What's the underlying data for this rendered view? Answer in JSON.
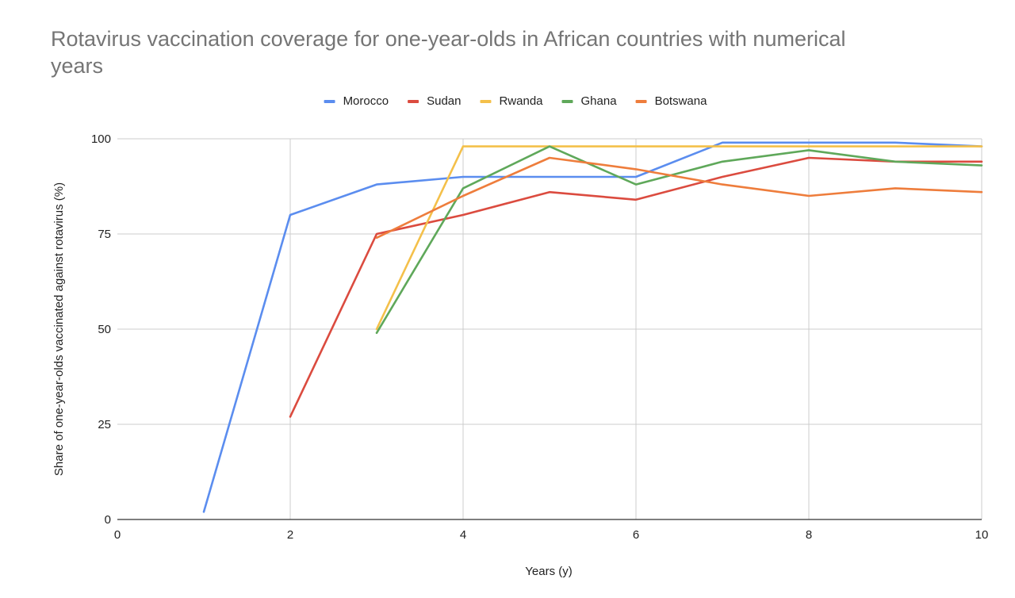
{
  "chart_data": {
    "type": "line",
    "title_lines": [
      "Rotavirus vaccination coverage for one-year-olds in African countries with numerical",
      "years"
    ],
    "xlabel": "Years (y)",
    "ylabel": "Share of one-year-olds vaccinated against rotavirus (%)",
    "xlim": [
      0,
      10
    ],
    "ylim": [
      0,
      100
    ],
    "xticks": [
      0,
      2,
      4,
      6,
      8,
      10
    ],
    "yticks": [
      0,
      25,
      50,
      75,
      100
    ],
    "grid": true,
    "legend_position": "top",
    "series": [
      {
        "name": "Morocco",
        "color": "#5b8def",
        "points": [
          [
            1,
            2
          ],
          [
            2,
            80
          ],
          [
            3,
            88
          ],
          [
            4,
            90
          ],
          [
            5,
            90
          ],
          [
            6,
            90
          ],
          [
            7,
            99
          ],
          [
            8,
            99
          ],
          [
            9,
            99
          ],
          [
            10,
            98
          ]
        ]
      },
      {
        "name": "Sudan",
        "color": "#db4b3f",
        "points": [
          [
            2,
            27
          ],
          [
            3,
            75
          ],
          [
            4,
            80
          ],
          [
            5,
            86
          ],
          [
            6,
            84
          ],
          [
            7,
            90
          ],
          [
            8,
            95
          ],
          [
            9,
            94
          ],
          [
            10,
            94
          ]
        ]
      },
      {
        "name": "Rwanda",
        "color": "#f4c04a",
        "points": [
          [
            3,
            50
          ],
          [
            4,
            98
          ],
          [
            5,
            98
          ],
          [
            6,
            98
          ],
          [
            7,
            98
          ],
          [
            8,
            98
          ],
          [
            9,
            98
          ],
          [
            10,
            98
          ]
        ]
      },
      {
        "name": "Ghana",
        "color": "#5fa85a",
        "points": [
          [
            3,
            49
          ],
          [
            4,
            87
          ],
          [
            5,
            98
          ],
          [
            6,
            88
          ],
          [
            7,
            94
          ],
          [
            8,
            97
          ],
          [
            9,
            94
          ],
          [
            10,
            93
          ]
        ]
      },
      {
        "name": "Botswana",
        "color": "#ee7d3c",
        "points": [
          [
            3,
            74
          ],
          [
            4,
            85
          ],
          [
            5,
            95
          ],
          [
            6,
            92
          ],
          [
            7,
            88
          ],
          [
            8,
            85
          ],
          [
            9,
            87
          ],
          [
            10,
            86
          ]
        ]
      }
    ]
  }
}
